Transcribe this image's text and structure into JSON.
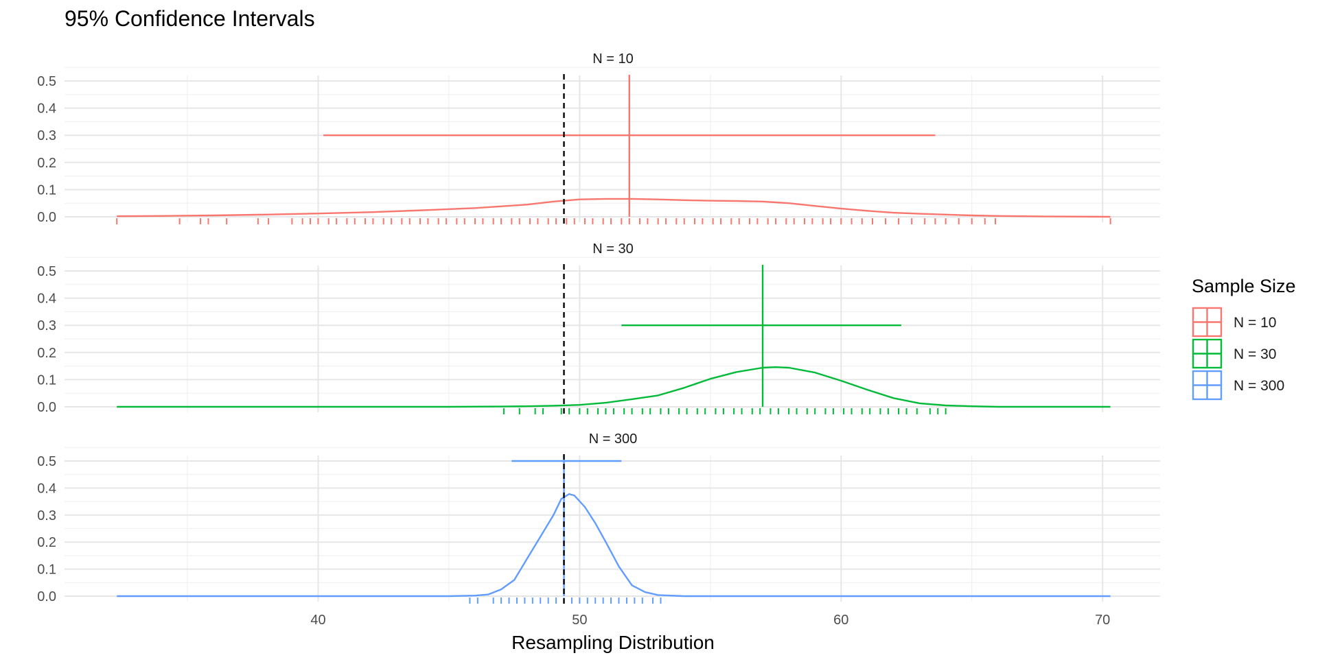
{
  "chart_data": {
    "type": "line",
    "title": "95% Confidence Intervals",
    "xlabel": "Resampling Distribution",
    "ylabel": "",
    "xlim": [
      30.3,
      72.2
    ],
    "ylim": [
      0,
      0.52
    ],
    "x_ticks": [
      40,
      50,
      60,
      70
    ],
    "y_ticks": [
      0.0,
      0.1,
      0.2,
      0.3,
      0.4,
      0.5
    ],
    "grid": true,
    "reference_line": {
      "x": 49.4,
      "style": "dashed",
      "color": "#000000"
    },
    "legend": {
      "title": "Sample Size",
      "position": "right",
      "entries": [
        "N = 10",
        "N = 30",
        "N = 300"
      ]
    },
    "panels": [
      {
        "label": "N = 10",
        "color": "#F8766D",
        "point_estimate": 51.9,
        "ci": [
          40.2,
          63.6
        ],
        "ci_height": 0.3,
        "density": {
          "x": [
            32.3,
            34,
            36,
            38,
            40,
            42,
            44,
            46,
            48,
            49,
            50,
            51,
            52,
            53,
            54,
            55,
            56,
            57,
            58,
            59,
            60,
            61,
            62,
            63,
            64,
            65,
            66,
            68,
            70.3
          ],
          "y": [
            0.002,
            0.003,
            0.005,
            0.008,
            0.012,
            0.017,
            0.024,
            0.032,
            0.045,
            0.056,
            0.064,
            0.066,
            0.066,
            0.064,
            0.061,
            0.059,
            0.058,
            0.056,
            0.05,
            0.04,
            0.03,
            0.022,
            0.015,
            0.011,
            0.008,
            0.005,
            0.003,
            0.001,
            0.0
          ]
        },
        "rug": [
          32.3,
          34.7,
          35.5,
          35.8,
          36.5,
          37.7,
          38.1,
          39.0,
          39.4,
          39.7,
          40.0,
          40.4,
          40.7,
          41.1,
          41.4,
          41.8,
          42.1,
          42.5,
          42.8,
          43.2,
          43.5,
          43.9,
          44.2,
          44.6,
          44.9,
          45.3,
          45.6,
          46.0,
          46.3,
          46.7,
          47.0,
          47.4,
          47.7,
          48.1,
          48.4,
          48.8,
          49.1,
          49.5,
          49.8,
          50.2,
          50.5,
          50.9,
          51.2,
          51.6,
          51.9,
          52.3,
          52.6,
          53.0,
          53.3,
          53.7,
          54.0,
          54.4,
          54.7,
          55.1,
          55.4,
          55.8,
          56.1,
          56.5,
          56.8,
          57.2,
          57.5,
          57.9,
          58.2,
          58.6,
          58.9,
          59.3,
          59.6,
          60.0,
          60.4,
          60.8,
          61.2,
          61.7,
          62.2,
          62.7,
          63.2,
          63.6,
          64.0,
          64.5,
          65.0,
          65.5,
          65.9,
          70.3
        ]
      },
      {
        "label": "N = 30",
        "color": "#00BA38",
        "point_estimate": 57.0,
        "ci": [
          51.6,
          62.3
        ],
        "ci_height": 0.3,
        "density": {
          "x": [
            32.3,
            40,
            45,
            47,
            48,
            49,
            50,
            51,
            52,
            53,
            54,
            55,
            56,
            57,
            57.5,
            58,
            59,
            60,
            61,
            62,
            63,
            64,
            65,
            66,
            70.3
          ],
          "y": [
            0.0,
            0.0,
            0.0,
            0.001,
            0.002,
            0.004,
            0.007,
            0.015,
            0.028,
            0.042,
            0.07,
            0.103,
            0.128,
            0.144,
            0.146,
            0.144,
            0.126,
            0.096,
            0.063,
            0.032,
            0.013,
            0.005,
            0.002,
            0.0,
            0.0
          ]
        },
        "rug": [
          47.1,
          47.7,
          48.3,
          48.6,
          49.3,
          49.6,
          50.0,
          50.3,
          50.7,
          51.0,
          51.3,
          51.7,
          52.0,
          52.4,
          52.7,
          53.1,
          53.4,
          53.8,
          54.1,
          54.5,
          54.8,
          55.2,
          55.5,
          55.9,
          56.2,
          56.6,
          56.9,
          57.3,
          57.6,
          58.0,
          58.3,
          58.7,
          59.0,
          59.4,
          59.7,
          60.1,
          60.4,
          60.8,
          61.1,
          61.5,
          61.8,
          62.2,
          62.5,
          62.9,
          63.4,
          63.7,
          64.0
        ]
      },
      {
        "label": "N = 300",
        "color": "#619CFF",
        "point_estimate": 49.4,
        "ci": [
          47.4,
          51.6
        ],
        "ci_height": 0.5,
        "density": {
          "x": [
            32.3,
            45,
            46,
            46.5,
            47,
            47.5,
            48,
            48.5,
            49,
            49.3,
            49.6,
            49.8,
            50.2,
            50.6,
            51,
            51.5,
            52,
            52.5,
            53,
            54,
            60,
            70.3
          ],
          "y": [
            0.0,
            0.0,
            0.002,
            0.006,
            0.025,
            0.06,
            0.14,
            0.22,
            0.3,
            0.36,
            0.378,
            0.372,
            0.33,
            0.27,
            0.2,
            0.11,
            0.04,
            0.015,
            0.004,
            0.0,
            0.0,
            0.0
          ]
        },
        "rug": [
          45.8,
          46.1,
          46.7,
          47.0,
          47.3,
          47.6,
          47.9,
          48.2,
          48.5,
          48.8,
          49.1,
          49.4,
          49.7,
          50.0,
          50.3,
          50.6,
          50.9,
          51.2,
          51.5,
          51.8,
          52.1,
          52.4,
          52.8,
          53.1
        ]
      }
    ]
  }
}
